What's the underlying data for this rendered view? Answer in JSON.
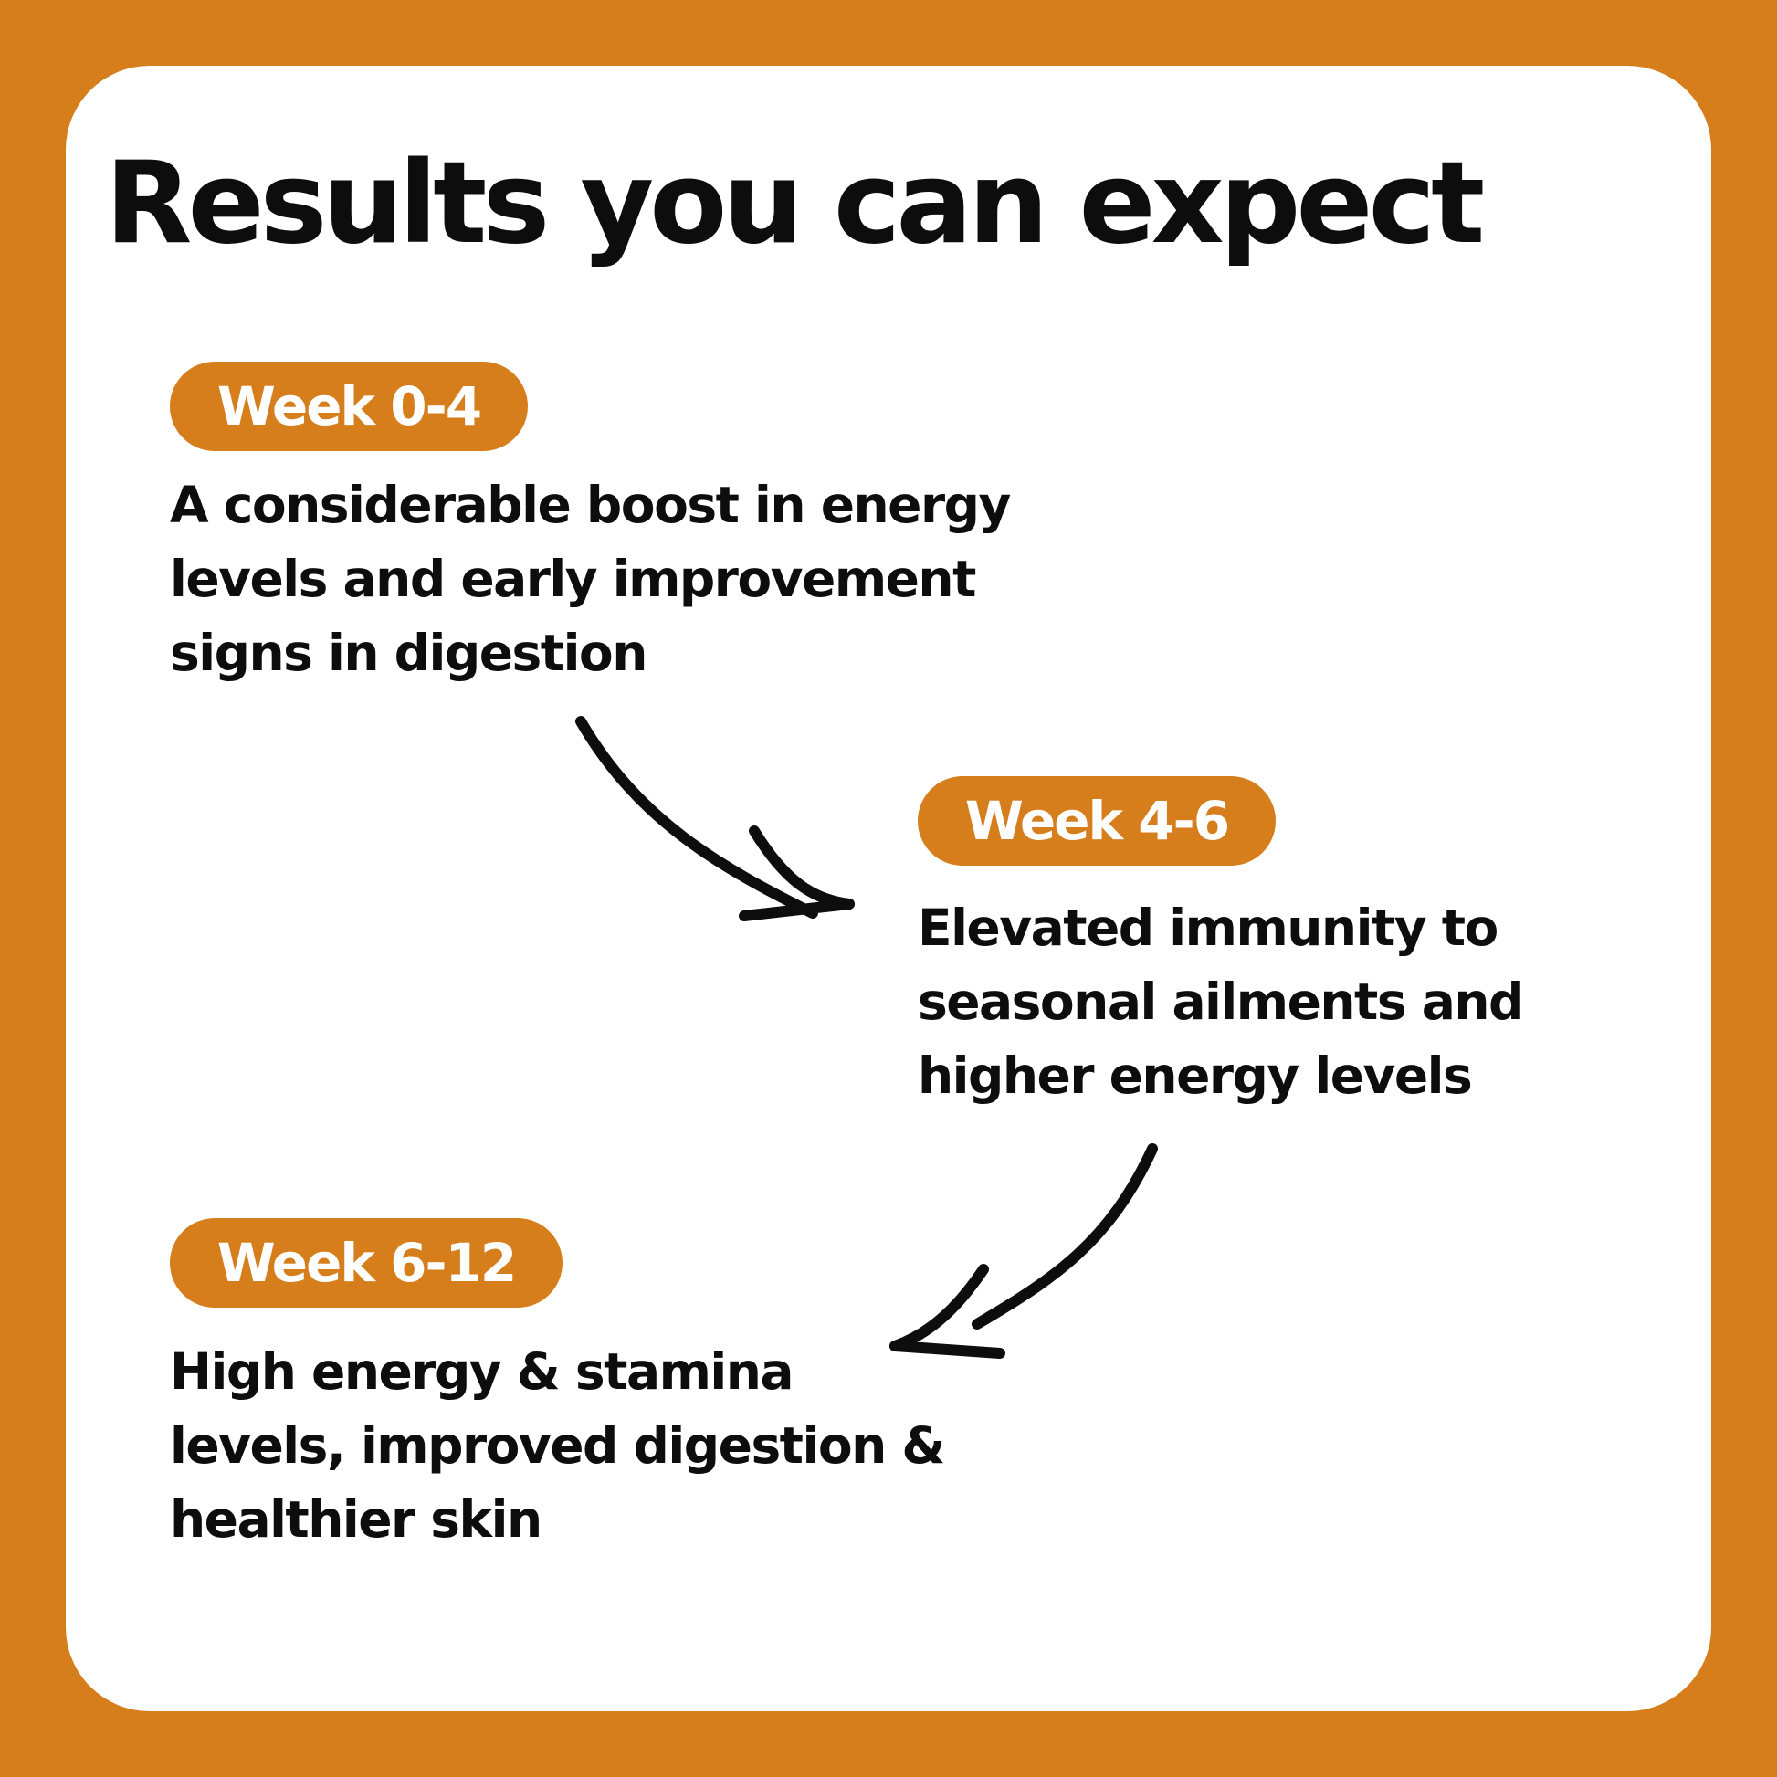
{
  "title": "Results you can expect",
  "colors": {
    "accent": "#d67d1c",
    "card": "#ffffff",
    "text": "#0d0d0d"
  },
  "stages": [
    {
      "label": "Week 0-4",
      "lines": [
        "A considerable boost in energy",
        "levels and early improvement",
        "signs in digestion"
      ]
    },
    {
      "label": "Week 4-6",
      "lines": [
        "Elevated immunity to",
        "seasonal ailments and",
        "higher energy levels"
      ]
    },
    {
      "label": "Week 6-12",
      "lines": [
        "High energy & stamina",
        "levels, improved digestion &",
        "healthier skin"
      ]
    }
  ],
  "icons": {
    "arrow_1": "curved-arrow-right",
    "arrow_2": "curved-arrow-left"
  }
}
